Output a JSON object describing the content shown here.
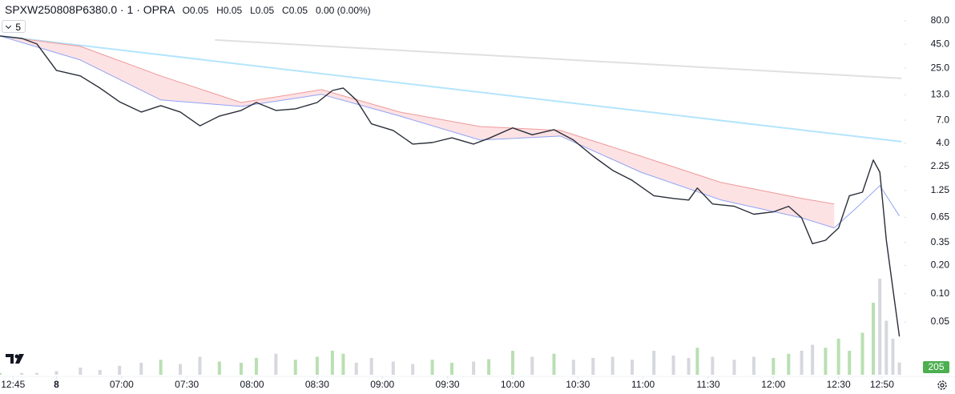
{
  "header": {
    "symbol": "SPXW250808P6380.0 · 1 · OPRA",
    "ohlc": [
      {
        "label": "O",
        "value": "0.05"
      },
      {
        "label": "H",
        "value": "0.05"
      },
      {
        "label": "L",
        "value": "0.05"
      },
      {
        "label": "C",
        "value": "0.05"
      }
    ],
    "change": "0.00 (0.00%)",
    "interval_button": "5"
  },
  "chart_data": {
    "type": "line",
    "log_scale": true,
    "xlim": [
      -56,
      360
    ],
    "ylim": [
      0.0137,
      133
    ],
    "xticks": [
      {
        "value": -50,
        "label": "12:45"
      },
      {
        "value": -30,
        "label": "8"
      },
      {
        "value": 0,
        "label": "07:00"
      },
      {
        "value": 30,
        "label": "07:30"
      },
      {
        "value": 60,
        "label": "08:00"
      },
      {
        "value": 90,
        "label": "08:30"
      },
      {
        "value": 120,
        "label": "09:00"
      },
      {
        "value": 150,
        "label": "09:30"
      },
      {
        "value": 180,
        "label": "10:00"
      },
      {
        "value": 210,
        "label": "10:30"
      },
      {
        "value": 240,
        "label": "11:00"
      },
      {
        "value": 270,
        "label": "11:30"
      },
      {
        "value": 300,
        "label": "12:00"
      },
      {
        "value": 330,
        "label": "12:30"
      },
      {
        "value": 350,
        "label": "12:50"
      }
    ],
    "yticks": [
      {
        "value": 80,
        "label": "80.0"
      },
      {
        "value": 45,
        "label": "45.0"
      },
      {
        "value": 25,
        "label": "25.0"
      },
      {
        "value": 13,
        "label": "13.0"
      },
      {
        "value": 7,
        "label": "7.0"
      },
      {
        "value": 4,
        "label": "4.0"
      },
      2.25,
      1.25,
      0.65,
      0.35,
      {
        "value": 0.2,
        "label": "0.20"
      },
      {
        "value": 0.1,
        "label": "0.10"
      },
      0.05
    ],
    "series": [
      {
        "color": "#e0e0e0",
        "width": 2,
        "x": [
          43,
          359
        ],
        "values": [
          50.0,
          19.5
        ]
      },
      {
        "color": "#b3e5fc",
        "width": 2,
        "x": [
          -56,
          359
        ],
        "values": [
          55.1,
          4.14
        ]
      },
      {
        "color": "#ef9a9a",
        "width": 1,
        "x": [
          -56,
          -19,
          18,
          55,
          92,
          128,
          165,
          202,
          239,
          276,
          313,
          328,
          339,
          349,
          358
        ],
        "values": [
          55.1,
          42.7,
          20.7,
          10.8,
          14.8,
          8.55,
          6.0,
          5.45,
          2.9,
          1.52,
          1.03,
          0.9,
          null,
          null,
          null
        ]
      },
      {
        "color": "#90a4f4",
        "width": 1,
        "x": [
          -56,
          -19,
          18,
          55,
          92,
          128,
          165,
          202,
          239,
          276,
          313,
          328,
          339,
          349,
          358
        ],
        "values": [
          55.1,
          30.6,
          11.5,
          9.8,
          13.2,
          7.75,
          4.3,
          4.75,
          1.96,
          0.99,
          0.64,
          0.5,
          0.85,
          1.41,
          0.67
        ]
      },
      {
        "color": "#2a2e39",
        "width": 1.4,
        "x": [
          -56,
          -46,
          -39,
          -30,
          -19,
          -10,
          -1,
          9,
          18,
          27,
          36,
          45,
          55,
          62,
          71,
          80,
          90,
          97,
          102,
          108,
          115,
          125,
          134,
          143,
          152,
          162,
          169,
          180,
          189,
          199,
          208,
          217,
          226,
          235,
          245,
          254,
          261,
          265,
          272,
          282,
          291,
          300,
          307,
          313,
          318,
          324,
          330,
          335,
          341,
          346,
          349,
          352,
          355,
          358
        ],
        "values": [
          55.1,
          52.0,
          45.3,
          23.7,
          20.7,
          15.4,
          11.0,
          8.55,
          10.0,
          8.55,
          6.1,
          7.75,
          8.9,
          10.8,
          8.9,
          9.25,
          10.8,
          14.5,
          15.4,
          11.5,
          6.4,
          5.45,
          3.9,
          4.05,
          4.55,
          3.9,
          4.48,
          5.8,
          4.9,
          5.55,
          4.3,
          2.9,
          2.05,
          1.6,
          1.1,
          1.03,
          0.99,
          1.33,
          0.9,
          0.85,
          0.7,
          0.74,
          0.85,
          0.64,
          0.34,
          0.37,
          0.5,
          1.1,
          1.2,
          2.64,
          1.96,
          0.37,
          0.114,
          0.035
        ]
      }
    ],
    "band_fill": "#fde2e4",
    "volume": {
      "up_color": "#b9dfb2",
      "down_color": "#d6d8de",
      "values": [
        30,
        30,
        30,
        60,
        120,
        80,
        150,
        200,
        250,
        180,
        300,
        220,
        200,
        280,
        350,
        250,
        300,
        400,
        350,
        200,
        280,
        220,
        180,
        250,
        200,
        220,
        260,
        400,
        300,
        350,
        250,
        280,
        300,
        250,
        400,
        320,
        280,
        450,
        300,
        250,
        300,
        280,
        350,
        400,
        500,
        450,
        600,
        400,
        700,
        1200,
        1600,
        900,
        600,
        205
      ]
    }
  }
}
